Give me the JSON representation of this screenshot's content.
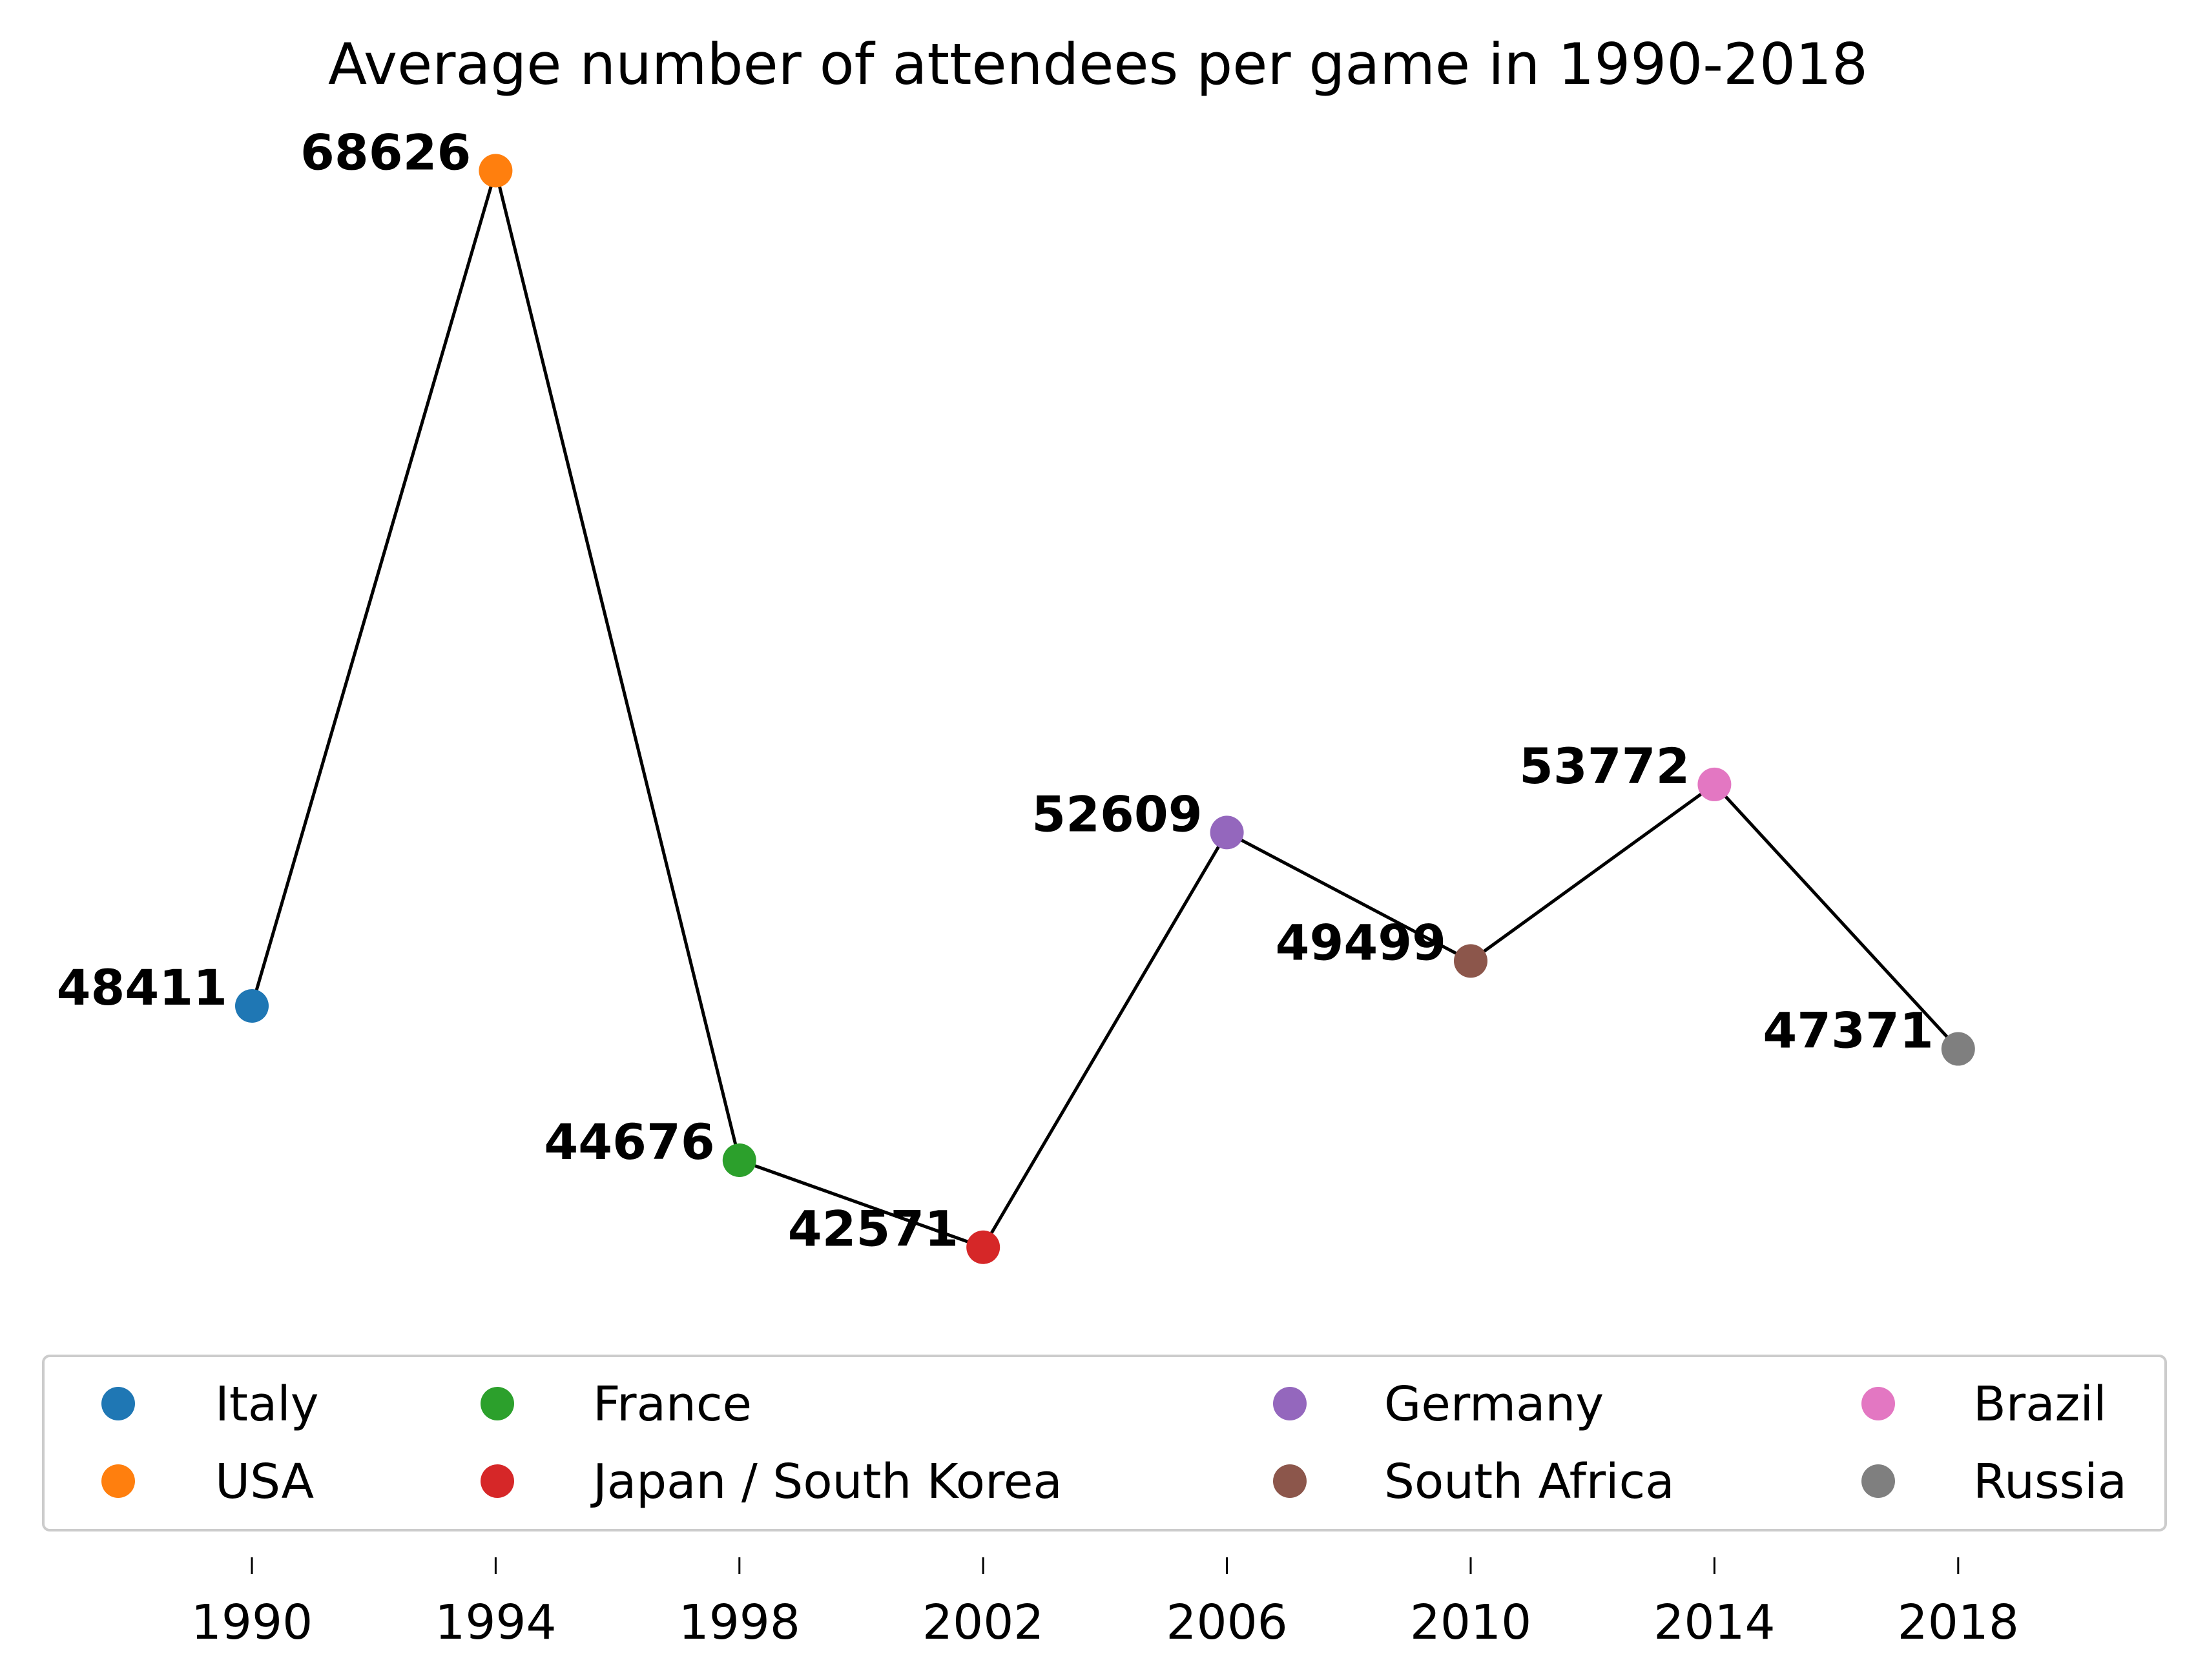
{
  "chart_data": {
    "type": "line",
    "title": "Average number of attendees per game in 1990-2018",
    "xlabel": "",
    "ylabel": "",
    "x": [
      1990,
      1994,
      1998,
      2002,
      2006,
      2010,
      2014,
      2018
    ],
    "xticks": [
      "1990",
      "1994",
      "1998",
      "2002",
      "2006",
      "2010",
      "2014",
      "2018"
    ],
    "values": [
      48411,
      68626,
      44676,
      42571,
      52609,
      49499,
      53772,
      47371
    ],
    "labels": [
      "48411",
      "68626",
      "44676",
      "42571",
      "52609",
      "49499",
      "53772",
      "47371"
    ],
    "ylim": [
      38000,
      70000
    ],
    "xlim": [
      1986,
      2021
    ],
    "grid": false,
    "y_axis_visible": false,
    "line_color": "#000000",
    "series": [
      {
        "name": "Italy",
        "color": "#1f77b4",
        "x": 1990,
        "value": 48411
      },
      {
        "name": "USA",
        "color": "#ff7f0e",
        "x": 1994,
        "value": 68626
      },
      {
        "name": "France",
        "color": "#2ca02c",
        "x": 1998,
        "value": 44676
      },
      {
        "name": "Japan / South Korea",
        "color": "#d62728",
        "x": 2002,
        "value": 42571
      },
      {
        "name": "Germany",
        "color": "#9467bd",
        "x": 2006,
        "value": 52609
      },
      {
        "name": "South Africa",
        "color": "#8c564b",
        "x": 2010,
        "value": 49499
      },
      {
        "name": "Brazil",
        "color": "#e377c2",
        "x": 2014,
        "value": 53772
      },
      {
        "name": "Russia",
        "color": "#7f7f7f",
        "x": 2018,
        "value": 47371
      }
    ],
    "legend_position": "lower-center",
    "legend_columns": 4
  }
}
